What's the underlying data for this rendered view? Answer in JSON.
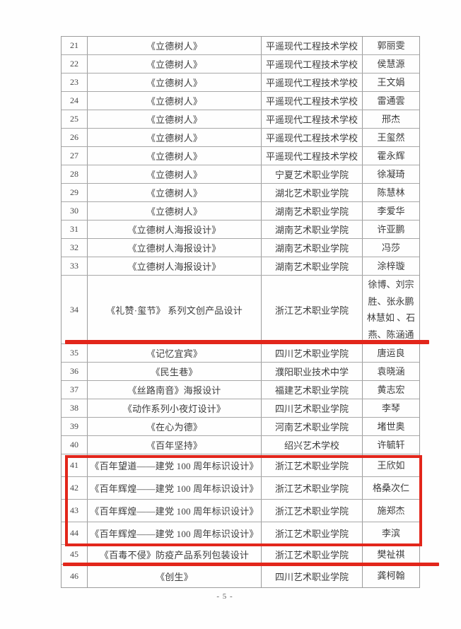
{
  "page": {
    "footer": "- 5 -"
  },
  "annotation": {
    "highlight_color": "#e2261b"
  },
  "table": {
    "rows": [
      {
        "no": "21",
        "title": "《立德树人》",
        "school": "平遥现代工程技术学校",
        "author": "郭丽雯"
      },
      {
        "no": "22",
        "title": "《立德树人》",
        "school": "平遥现代工程技术学校",
        "author": "侯慧源"
      },
      {
        "no": "23",
        "title": "《立德树人》",
        "school": "平遥现代工程技术学校",
        "author": "王文娟"
      },
      {
        "no": "24",
        "title": "《立德树人》",
        "school": "平遥现代工程技术学校",
        "author": "雷通雲"
      },
      {
        "no": "25",
        "title": "《立德树人》",
        "school": "平遥现代工程技术学校",
        "author": "邢杰"
      },
      {
        "no": "26",
        "title": "《立德树人》",
        "school": "平遥现代工程技术学校",
        "author": "王玺然"
      },
      {
        "no": "27",
        "title": "《立德树人》",
        "school": "平遥现代工程技术学校",
        "author": "霍永辉"
      },
      {
        "no": "28",
        "title": "《立德树人》",
        "school": "宁夏艺术职业学院",
        "author": "徐凝琦"
      },
      {
        "no": "29",
        "title": "《立德树人》",
        "school": "湖北艺术职业学院",
        "author": "陈慧林"
      },
      {
        "no": "30",
        "title": "《立德树人》",
        "school": "湖南艺术职业学院",
        "author": "李爱华"
      },
      {
        "no": "31",
        "title": "《立德树人海报设计》",
        "school": "湖南艺术职业学院",
        "author": "许亚鹏"
      },
      {
        "no": "32",
        "title": "《立德树人海报设计》",
        "school": "湖南艺术职业学院",
        "author": "冯莎"
      },
      {
        "no": "33",
        "title": "《立德树人海报设计》",
        "school": "湖南艺术职业学院",
        "author": "涂梓璇"
      },
      {
        "no": "34",
        "title": "《礼赞·玺节》 系列文创产品设计",
        "school": "浙江艺术职业学院",
        "author": "徐博、刘宗\n胜、张永鹏\n林慧如 、石\n燕、陈涵通"
      },
      {
        "no": "35",
        "title": "《记忆宜宾》",
        "school": "四川艺术职业学院",
        "author": "唐运良"
      },
      {
        "no": "36",
        "title": "《民生巷》",
        "school": "濮阳职业技术中学",
        "author": "袁晓涵"
      },
      {
        "no": "37",
        "title": "《丝路南音》海报设计",
        "school": "福建艺术职业学院",
        "author": "黄志宏"
      },
      {
        "no": "38",
        "title": "《动作系列小夜灯设计》",
        "school": "四川艺术职业学院",
        "author": "李琴"
      },
      {
        "no": "39",
        "title": "《在心为德》",
        "school": "河南艺术职业学院",
        "author": "堵世奥"
      },
      {
        "no": "40",
        "title": "《百年坚持》",
        "school": "绍兴艺术学校",
        "author": "许毓轩"
      },
      {
        "no": "41",
        "title": "《百年望道——建党 100 周年标识设计》",
        "school": "浙江艺术职业学院",
        "author": "王欣如"
      },
      {
        "no": "42",
        "title": "《百年辉煌——建党 100 周年标识设计》",
        "school": "浙江艺术职业学院",
        "author": "格桑次仁"
      },
      {
        "no": "43",
        "title": "《百年辉煌——建党 100 周年标识设计》",
        "school": "浙江艺术职业学院",
        "author": "施郑杰"
      },
      {
        "no": "44",
        "title": "《百年辉煌——建党 100 周年标识设计》",
        "school": "浙江艺术职业学院",
        "author": "李滨"
      },
      {
        "no": "45",
        "title": "《百毒不侵》防疫产品系列包装设计",
        "school": "浙江艺术职业学院",
        "author": "樊祉祺"
      },
      {
        "no": "46",
        "title": "《创生》",
        "school": "四川艺术职业学院",
        "author": "龚柯翰"
      }
    ]
  }
}
